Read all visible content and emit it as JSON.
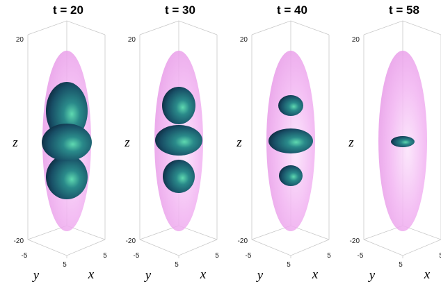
{
  "panels": [
    {
      "title": "t = 20",
      "z_axis": {
        "label": "z",
        "ticks": [
          "20",
          "-20"
        ]
      },
      "y_axis": {
        "label": "y",
        "ticks": [
          "-5",
          "5"
        ]
      },
      "x_axis": {
        "label": "x",
        "ticks": [
          "5"
        ]
      }
    },
    {
      "title": "t = 30",
      "z_axis": {
        "label": "z",
        "ticks": [
          "20",
          "-20"
        ]
      },
      "y_axis": {
        "label": "y",
        "ticks": [
          "-5",
          "5"
        ]
      },
      "x_axis": {
        "label": "x",
        "ticks": [
          "5"
        ]
      }
    },
    {
      "title": "t = 40",
      "z_axis": {
        "label": "z",
        "ticks": [
          "20",
          "-20"
        ]
      },
      "y_axis": {
        "label": "y",
        "ticks": [
          "-5",
          "5"
        ]
      },
      "x_axis": {
        "label": "x",
        "ticks": [
          "5"
        ]
      }
    },
    {
      "title": "t = 58",
      "z_axis": {
        "label": "z",
        "ticks": [
          "20",
          "-20"
        ]
      },
      "y_axis": {
        "label": "y",
        "ticks": [
          "-5",
          "5"
        ]
      },
      "x_axis": {
        "label": "x",
        "ticks": [
          "5"
        ]
      }
    }
  ]
}
